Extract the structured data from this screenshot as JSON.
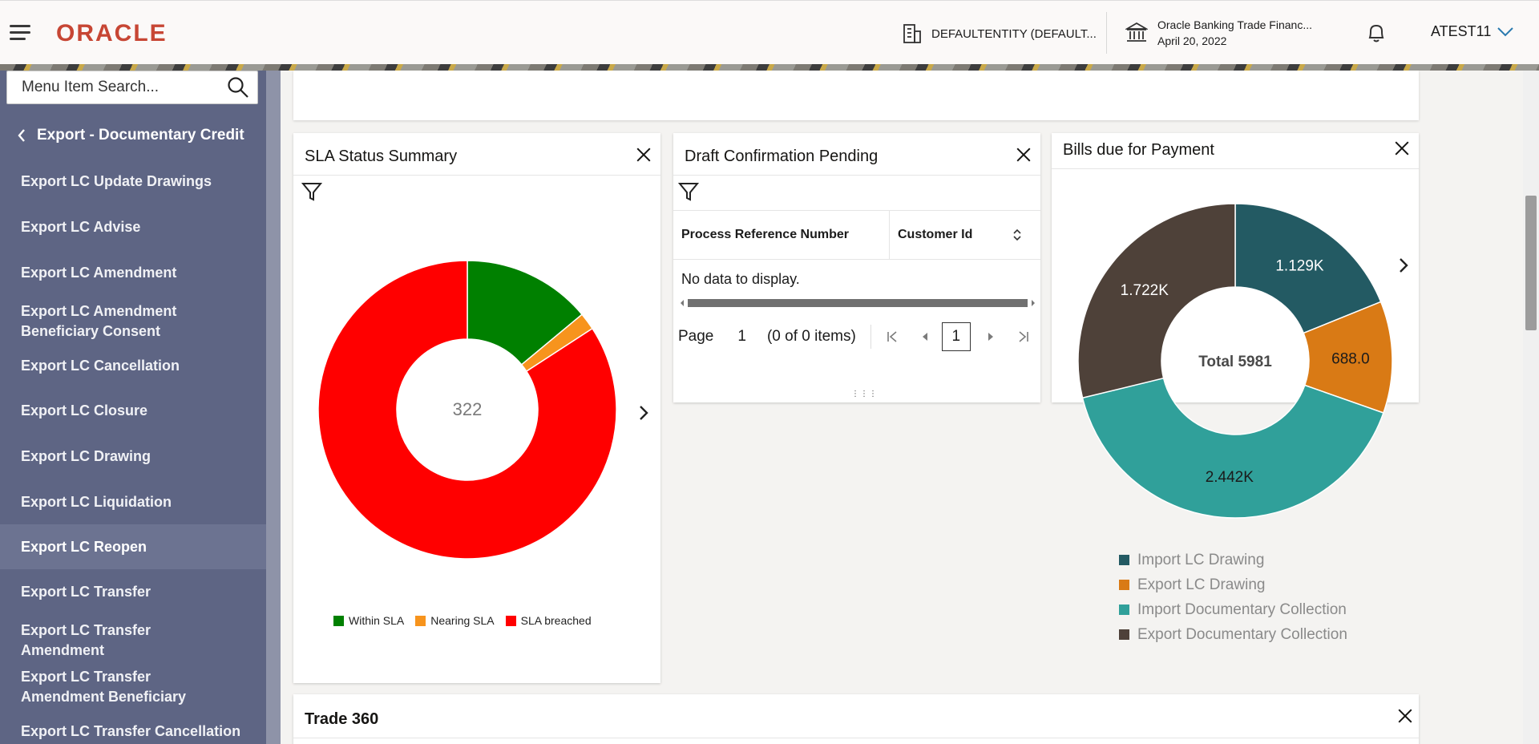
{
  "header": {
    "brand": "ORACLE",
    "entity": "DEFAULTENTITY (DEFAULT...",
    "bank_name": "Oracle Banking Trade Financ...",
    "bank_date": "April 20, 2022",
    "user": "ATEST11"
  },
  "sidebar": {
    "search_placeholder": "Menu Item Search...",
    "back_label": "Export - Documentary Credit",
    "items": [
      {
        "label": "Export LC Update Drawings"
      },
      {
        "label": "Export LC Advise"
      },
      {
        "label": "Export LC Amendment"
      },
      {
        "label": "Export LC Amendment Beneficiary Consent"
      },
      {
        "label": "Export LC Cancellation"
      },
      {
        "label": "Export LC Closure"
      },
      {
        "label": "Export LC Drawing"
      },
      {
        "label": "Export LC Liquidation"
      },
      {
        "label": "Export LC Reopen"
      },
      {
        "label": "Export LC Transfer"
      },
      {
        "label": "Export LC Transfer Amendment"
      },
      {
        "label": "Export LC Transfer Amendment Beneficiary"
      },
      {
        "label": "Export LC Transfer Cancellation"
      }
    ]
  },
  "sla": {
    "title": "SLA Status Summary",
    "center_value": "322",
    "legend": [
      {
        "label": "Within SLA",
        "color": "#008000"
      },
      {
        "label": "Nearing SLA",
        "color": "#f7941d"
      },
      {
        "label": "SLA breached",
        "color": "#ff0000"
      }
    ]
  },
  "draft": {
    "title": "Draft Confirmation Pending",
    "columns": [
      "Process Reference Number",
      "Customer Id"
    ],
    "empty_text": "No data to display.",
    "page_label": "Page",
    "page_number": "1",
    "items_text": "(0 of 0 items)",
    "current_page": "1"
  },
  "bills": {
    "title": "Bills due for Payment",
    "center_text": "Total 5981",
    "legend": [
      {
        "label": "Import LC Drawing",
        "color": "#235a63"
      },
      {
        "label": "Export LC Drawing",
        "color": "#d97a15"
      },
      {
        "label": "Import Documentary Collection",
        "color": "#30a09a"
      },
      {
        "label": "Export Documentary Collection",
        "color": "#4e4139"
      }
    ]
  },
  "trade360": {
    "title": "Trade 360"
  },
  "chart_data": [
    {
      "type": "pie",
      "title": "SLA Status Summary",
      "center_label": "322",
      "series": [
        {
          "name": "Within SLA",
          "value": 45,
          "color": "#008000"
        },
        {
          "name": "Nearing SLA",
          "value": 6,
          "color": "#f7941d"
        },
        {
          "name": "SLA breached",
          "value": 271,
          "color": "#ff0000"
        }
      ]
    },
    {
      "type": "pie",
      "title": "Bills due for Payment",
      "center_label": "Total 5981",
      "series": [
        {
          "name": "Import LC Drawing",
          "value": 1129,
          "label": "1.129K",
          "color": "#235a63"
        },
        {
          "name": "Export LC Drawing",
          "value": 688,
          "label": "688.0",
          "color": "#d97a15"
        },
        {
          "name": "Import Documentary Collection",
          "value": 2442,
          "label": "2.442K",
          "color": "#30a09a"
        },
        {
          "name": "Export Documentary Collection",
          "value": 1722,
          "label": "1.722K",
          "color": "#4e4139"
        }
      ]
    }
  ]
}
